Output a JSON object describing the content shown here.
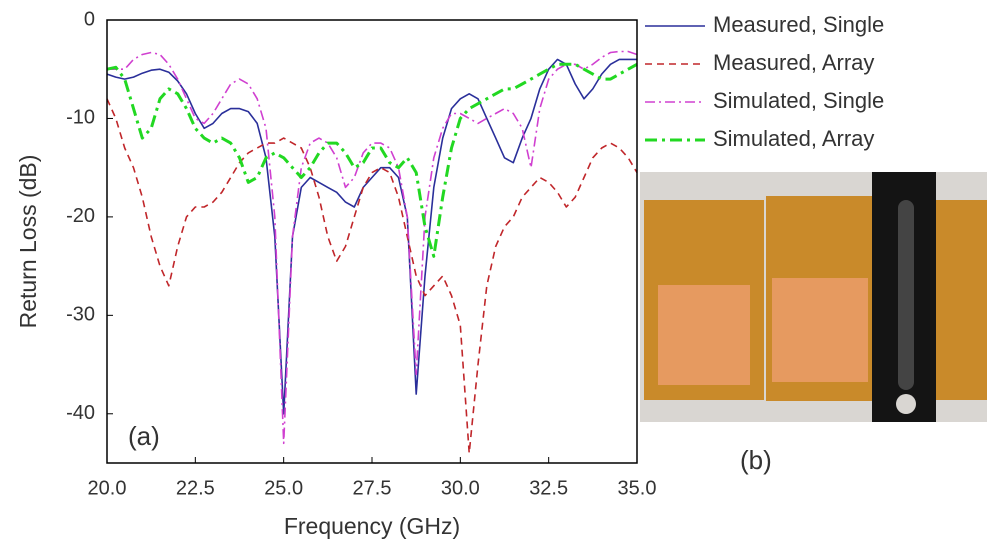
{
  "chart_data": {
    "type": "line",
    "xlabel": "Frequency (GHz)",
    "ylabel": "Return Loss (dB)",
    "xlim": [
      20,
      35
    ],
    "ylim": [
      -45,
      0
    ],
    "xticks": [
      {
        "value": 20,
        "label": "20.0"
      },
      {
        "value": 22.5,
        "label": "22.5"
      },
      {
        "value": 25,
        "label": "25.0"
      },
      {
        "value": 27.5,
        "label": "27.5"
      },
      {
        "value": 30,
        "label": "30.0"
      },
      {
        "value": 32.5,
        "label": "32.5"
      },
      {
        "value": 35,
        "label": "35.0"
      }
    ],
    "yticks": [
      0,
      -10,
      -20,
      -30,
      -40
    ],
    "legend": "right",
    "panel_labels": [
      "(a)",
      "(b)"
    ],
    "x": [
      20,
      20.25,
      20.5,
      20.75,
      21,
      21.25,
      21.5,
      21.75,
      22,
      22.25,
      22.5,
      22.75,
      23,
      23.25,
      23.5,
      23.75,
      24,
      24.25,
      24.5,
      24.75,
      25,
      25.25,
      25.5,
      25.75,
      26,
      26.25,
      26.5,
      26.75,
      27,
      27.25,
      27.5,
      27.75,
      28,
      28.25,
      28.5,
      28.75,
      29,
      29.25,
      29.5,
      29.75,
      30,
      30.25,
      30.5,
      30.75,
      31,
      31.25,
      31.5,
      31.75,
      32,
      32.25,
      32.5,
      32.75,
      33,
      33.25,
      33.5,
      33.75,
      34,
      34.25,
      34.5,
      34.75,
      35
    ],
    "series": [
      {
        "name": "Measured, Single",
        "color": "#2a2f9a",
        "dash": "solid",
        "values": [
          -5.5,
          -5.8,
          -6,
          -5.8,
          -5.4,
          -5.1,
          -5,
          -5.3,
          -6.2,
          -7.5,
          -9.5,
          -11,
          -10.5,
          -9.5,
          -9,
          -9,
          -9.3,
          -10.5,
          -14,
          -22,
          -40,
          -22,
          -17,
          -16,
          -16.5,
          -17,
          -17.5,
          -18.5,
          -19,
          -17,
          -16,
          -15,
          -15,
          -16,
          -20,
          -38,
          -26,
          -17,
          -12,
          -9,
          -8,
          -7.5,
          -8,
          -10,
          -12,
          -14,
          -14.5,
          -12,
          -10,
          -7,
          -5,
          -4,
          -4.5,
          -6.5,
          -8,
          -7,
          -5.5,
          -4.5,
          -4,
          -4,
          -4
        ]
      },
      {
        "name": "Measured, Array",
        "color": "#c0262a",
        "dash": "dash",
        "values": [
          -8,
          -10,
          -13,
          -15,
          -18,
          -22,
          -25,
          -27,
          -23,
          -20,
          -19,
          -19,
          -18.5,
          -17.5,
          -16,
          -14.5,
          -13.5,
          -13,
          -12.5,
          -12.5,
          -12,
          -12.5,
          -13,
          -15,
          -18,
          -22,
          -24.5,
          -23,
          -20,
          -17,
          -15.5,
          -15,
          -15.5,
          -18,
          -22,
          -26,
          -28,
          -27,
          -26,
          -28,
          -31,
          -44,
          -35,
          -27,
          -23,
          -21,
          -20,
          -18,
          -17,
          -16,
          -16.5,
          -17.5,
          -19,
          -18,
          -16,
          -14,
          -13,
          -12.5,
          -13,
          -14,
          -15.5
        ]
      },
      {
        "name": "Simulated, Single",
        "color": "#d040d0",
        "dash": "dashdot",
        "values": [
          -5,
          -5,
          -5,
          -4,
          -3.5,
          -3.3,
          -3.5,
          -4.5,
          -6,
          -8,
          -10,
          -10.5,
          -9.5,
          -8,
          -6.5,
          -6,
          -6.5,
          -8,
          -11,
          -20,
          -43,
          -22,
          -15,
          -12.5,
          -12,
          -12.5,
          -14,
          -17,
          -16,
          -13.5,
          -12.5,
          -12.5,
          -13,
          -15,
          -20,
          -36,
          -20,
          -14,
          -11,
          -9.5,
          -9.5,
          -10,
          -10.5,
          -10,
          -9.5,
          -9,
          -9.5,
          -11,
          -15,
          -9,
          -6,
          -5,
          -4.5,
          -4.5,
          -5,
          -4.5,
          -3.8,
          -3.3,
          -3.2,
          -3.2,
          -3.5
        ]
      },
      {
        "name": "Simulated, Array",
        "color": "#22d822",
        "dash": "dashdot-bold",
        "values": [
          -5,
          -4.8,
          -6,
          -9,
          -12,
          -11,
          -8,
          -7,
          -7.5,
          -9,
          -11,
          -12,
          -12.5,
          -12,
          -12.5,
          -14,
          -16.5,
          -16,
          -14,
          -13.5,
          -14,
          -15,
          -16,
          -15,
          -13.5,
          -12.5,
          -12.5,
          -13.5,
          -15,
          -14.5,
          -13,
          -13,
          -14.5,
          -15,
          -14,
          -15.5,
          -21,
          -24,
          -18,
          -13,
          -10,
          -9,
          -8.5,
          -8,
          -7.5,
          -7,
          -7,
          -6.5,
          -6,
          -5.5,
          -5,
          -4.5,
          -4.5,
          -4.5,
          -5,
          -5.5,
          -6,
          -6,
          -5.5,
          -5,
          -4.5
        ]
      }
    ]
  }
}
